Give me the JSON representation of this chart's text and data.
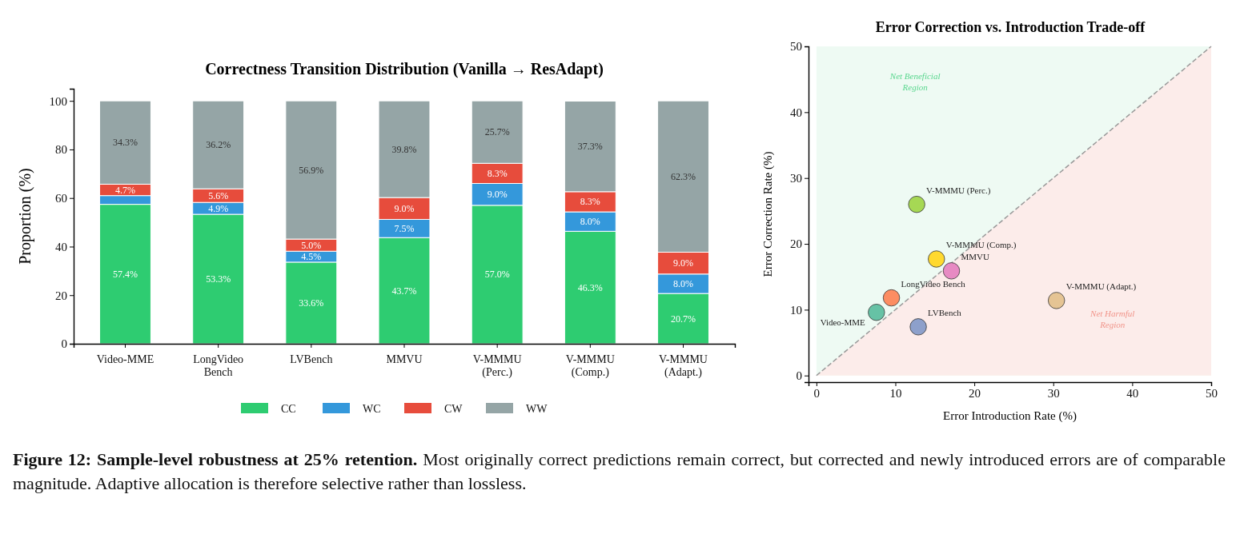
{
  "chart_data": [
    {
      "type": "bar",
      "title": "Correctness Transition Distribution (Vanilla → ResAdapt)",
      "ylabel": "Proportion (%)",
      "categories": [
        "Video-MME",
        "LongVideo\nBench",
        "LVBench",
        "MMVU",
        "V-MMMU\n(Perc.)",
        "V-MMMU\n(Comp.)",
        "V-MMMU\n(Adapt.)"
      ],
      "stacked": true,
      "ylim": [
        0,
        105
      ],
      "yticks": [
        0,
        20,
        40,
        60,
        80,
        100
      ],
      "legend": "bottom",
      "series": [
        {
          "name": "CC",
          "color": "#2ecc71",
          "values": [
            57.4,
            53.3,
            33.6,
            43.7,
            57.0,
            46.3,
            20.7
          ],
          "value_labels": [
            "57.4%",
            "53.3%",
            "33.6%",
            "43.7%",
            "57.0%",
            "46.3%",
            "20.7%"
          ]
        },
        {
          "name": "WC",
          "color": "#3498db",
          "values": [
            3.6,
            4.9,
            4.5,
            7.5,
            9.0,
            8.0,
            8.0
          ],
          "value_labels": [
            null,
            "4.9%",
            "4.5%",
            "7.5%",
            "9.0%",
            "8.0%",
            "8.0%"
          ]
        },
        {
          "name": "CW",
          "color": "#e74c3c",
          "values": [
            4.7,
            5.6,
            5.0,
            9.0,
            8.3,
            8.3,
            9.0
          ],
          "value_labels": [
            "4.7%",
            "5.6%",
            "5.0%",
            "9.0%",
            "8.3%",
            "8.3%",
            "9.0%"
          ]
        },
        {
          "name": "WW",
          "color": "#95a5a6",
          "values": [
            34.3,
            36.2,
            56.9,
            39.8,
            25.7,
            37.3,
            62.3
          ],
          "value_labels": [
            "34.3%",
            "36.2%",
            "56.9%",
            "39.8%",
            "25.7%",
            "37.3%",
            "62.3%"
          ]
        }
      ],
      "annotations": [
        "Figure 12: Sample-level robustness at 25% retention. Most originally correct predictions remain correct, but corrected and newly introduced errors are of comparable magnitude. Adaptive allocation is therefore selective rather than lossless."
      ]
    },
    {
      "type": "scatter",
      "title": "Error Correction vs. Introduction Trade-off",
      "xlabel": "Error Introduction Rate (%)",
      "ylabel": "Error Correction Rate (%)",
      "xlim": [
        -1,
        50
      ],
      "xticks": [
        0,
        10,
        20,
        30,
        40,
        50
      ],
      "ylim": [
        -1,
        50
      ],
      "yticks": [
        0,
        10,
        20,
        30,
        40,
        50
      ],
      "series": [
        {
          "name": "Video-MME",
          "color": "#66c2a5",
          "marker": "circle",
          "x": [
            7.6
          ],
          "values": [
            9.6
          ]
        },
        {
          "name": "LongVideo Bench",
          "color": "#fc8d62",
          "marker": "circle",
          "x": [
            9.5
          ],
          "values": [
            11.8
          ]
        },
        {
          "name": "LVBench",
          "color": "#8da0cb",
          "marker": "circle",
          "x": [
            12.9
          ],
          "values": [
            7.4
          ]
        },
        {
          "name": "MMVU",
          "color": "#e78ac3",
          "marker": "circle",
          "x": [
            17.1
          ],
          "values": [
            15.9
          ]
        },
        {
          "name": "V-MMMU (Perc.)",
          "color": "#a6d854",
          "marker": "circle",
          "x": [
            12.7
          ],
          "values": [
            26.0
          ]
        },
        {
          "name": "V-MMMU (Comp.)",
          "color": "#ffd92f",
          "marker": "circle",
          "x": [
            15.2
          ],
          "values": [
            17.7
          ]
        },
        {
          "name": "V-MMMU (Adapt.)",
          "color": "#e5c494",
          "marker": "circle",
          "x": [
            30.4
          ],
          "values": [
            11.4
          ]
        },
        {
          "type": "line",
          "color": "#999999",
          "line_style": "dashed",
          "marker": "none",
          "x": [
            0,
            25,
            50
          ],
          "values": [
            0,
            25,
            50
          ]
        }
      ],
      "annotations": [
        "Net Beneficial\nRegion",
        "Net Harmful\nRegion"
      ]
    }
  ]
}
